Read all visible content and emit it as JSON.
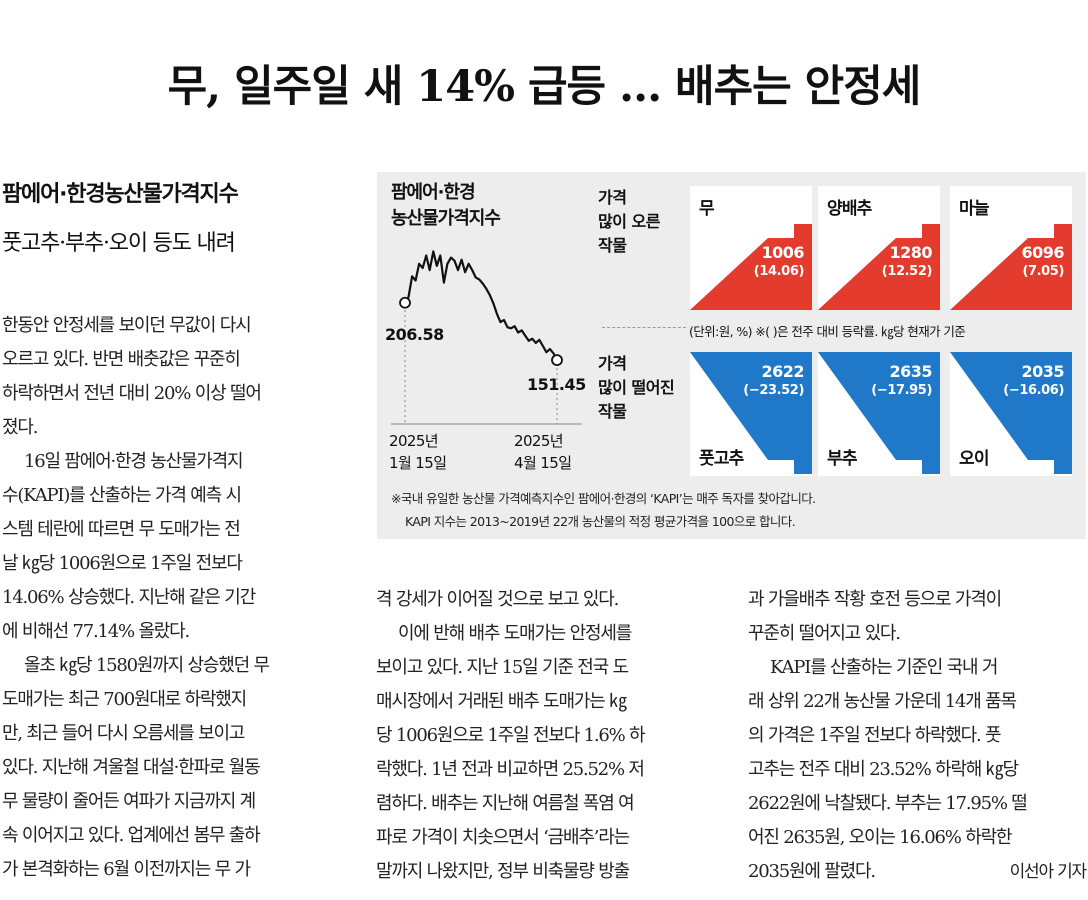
{
  "headline": "무, 일주일 새 14% 급등 … 배추는 안정세",
  "subheads": [
    "팜에어·한경농산물가격지수",
    "풋고추·부추·오이 등도 내려"
  ],
  "columns": [
    [
      "한동안 안정세를 보이던 무값이 다시",
      "오르고 있다. 반면 배춧값은 꾸준히",
      "하락하면서 전년 대비 20% 이상 떨어",
      "졌다.",
      "16일 팜에어·한경 농산물가격지",
      "수(KAPI)를 산출하는 가격 예측 시",
      "스템 테란에 따르면 무 도매가는 전",
      "날 ㎏당 1006원으로 1주일 전보다",
      "14.06% 상승했다. 지난해 같은 기간",
      "에 비해선 77.14% 올랐다.",
      "올초 ㎏당 1580원까지 상승했던 무",
      "도매가는 최근 700원대로 하락했지",
      "만, 최근 들어 다시 오름세를 보이고",
      "있다. 지난해 겨울철 대설·한파로 월동",
      "무 물량이 줄어든 여파가 지금까지 계",
      "속 이어지고 있다. 업계에선 봄무 출하",
      "가 본격화하는 6월 이전까지는 무 가"
    ],
    [
      "격 강세가 이어질 것으로 보고 있다.",
      "이에 반해 배추 도매가는 안정세를",
      "보이고 있다. 지난 15일 기준 전국 도",
      "매시장에서 거래된 배추 도매가는 ㎏",
      "당 1006원으로 1주일 전보다 1.6% 하",
      "락했다. 1년 전과 비교하면 25.52% 저",
      "렴하다. 배추는 지난해 여름철 폭염 여",
      "파로 가격이 치솟으면서 ‘금배추’라는",
      "말까지 나왔지만, 정부 비축물량 방출"
    ],
    [
      "과 가을배추 작황 호전 등으로 가격이",
      "꾸준히 떨어지고 있다.",
      "KAPI를 산출하는 기준인 국내 거",
      "래 상위 22개 농산물 가운데 14개 품목",
      "의 가격은 1주일 전보다 하락했다. 풋",
      "고추는 전주 대비 23.52% 하락해 ㎏당",
      "2622원에 낙찰됐다. 부추는 17.95% 떨",
      "어진 2635원, 오이는 16.06% 하락한",
      "2035원에 팔렸다."
    ]
  ],
  "reporter": "이선아 기자",
  "infographic": {
    "title": [
      "팜에어·한경",
      "농산물가격지수"
    ],
    "start_value": "206.58",
    "end_value": "151.45",
    "start_date": [
      "2025년",
      "1월 15일"
    ],
    "end_date": [
      "2025년",
      "4월 15일"
    ],
    "rise_label": [
      "가격",
      "많이 오른",
      "작물"
    ],
    "fall_label": [
      "가격",
      "많이 떨어진",
      "작물"
    ],
    "unit_note": "(단위:원, %) ※(  )은 전주 대비 등락률. ㎏당 현재가 기준",
    "rise_items": [
      {
        "name": "무",
        "price": "1006",
        "change": "(14.06)"
      },
      {
        "name": "양배추",
        "price": "1280",
        "change": "(12.52)"
      },
      {
        "name": "마늘",
        "price": "6096",
        "change": "(7.05)"
      }
    ],
    "fall_items": [
      {
        "name": "풋고추",
        "price": "2622",
        "change": "(−23.52)"
      },
      {
        "name": "부추",
        "price": "2635",
        "change": "(−17.95)"
      },
      {
        "name": "오이",
        "price": "2035",
        "change": "(−16.06)"
      }
    ],
    "footnotes": [
      "※국내 유일한 농산물 가격예측지수인 팜에어·한경의 ‘KAPI’는 매주 독자를 찾아갑니다.",
      "KAPI 지수는 2013~2019년 22개 농산물의 적정 평균가격을 100으로 합니다."
    ],
    "colors": {
      "rise": "#e33b2e",
      "fall": "#1f78c8",
      "panel": "#ededed"
    }
  },
  "chart_data": {
    "type": "line",
    "x_range": [
      "2025-01-15",
      "2025-04-15"
    ],
    "start": 206.58,
    "end": 151.45,
    "series": [
      {
        "values": [
          206.58,
          212,
          232,
          228,
          244,
          240,
          252,
          238,
          256,
          242,
          252,
          226,
          244,
          250,
          247,
          238,
          248,
          236,
          244,
          238,
          231,
          229,
          225,
          220,
          214,
          206,
          196,
          188,
          190,
          183,
          182,
          184,
          178,
          180,
          175,
          170,
          172,
          168,
          171,
          165,
          159,
          162,
          158,
          151.45
        ]
      }
    ]
  }
}
